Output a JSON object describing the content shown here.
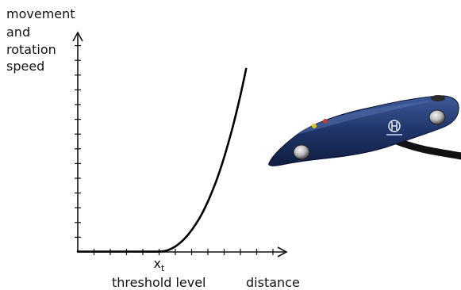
{
  "chart_data": {
    "type": "line",
    "ylabel_lines": [
      "movement",
      "and",
      "rotation",
      "speed"
    ],
    "xlabel": "distance",
    "threshold_symbol": "x",
    "threshold_subscript": "t",
    "threshold_label": "threshold level",
    "x_tick_count": 13,
    "y_tick_count": 15,
    "threshold_tick_index": 5,
    "curve": {
      "description_shape": "zero below threshold, rising steeply (power curve) above threshold",
      "x": [
        0,
        1,
        2,
        3,
        4,
        5,
        5.5,
        6,
        6.5,
        7,
        7.5,
        8,
        8.5,
        9,
        9.5,
        10,
        10.35
      ],
      "y": [
        0,
        0,
        0,
        0,
        0,
        0,
        0.08,
        0.35,
        0.8,
        1.45,
        2.3,
        3.4,
        4.75,
        6.4,
        8.35,
        10.6,
        12.4
      ]
    },
    "grid": false
  },
  "device_image": {
    "icon": "spacemouse-device-icon",
    "body_color": "#1f3569",
    "accent_color": "#c0392b",
    "button_color": "#e5c21a"
  }
}
